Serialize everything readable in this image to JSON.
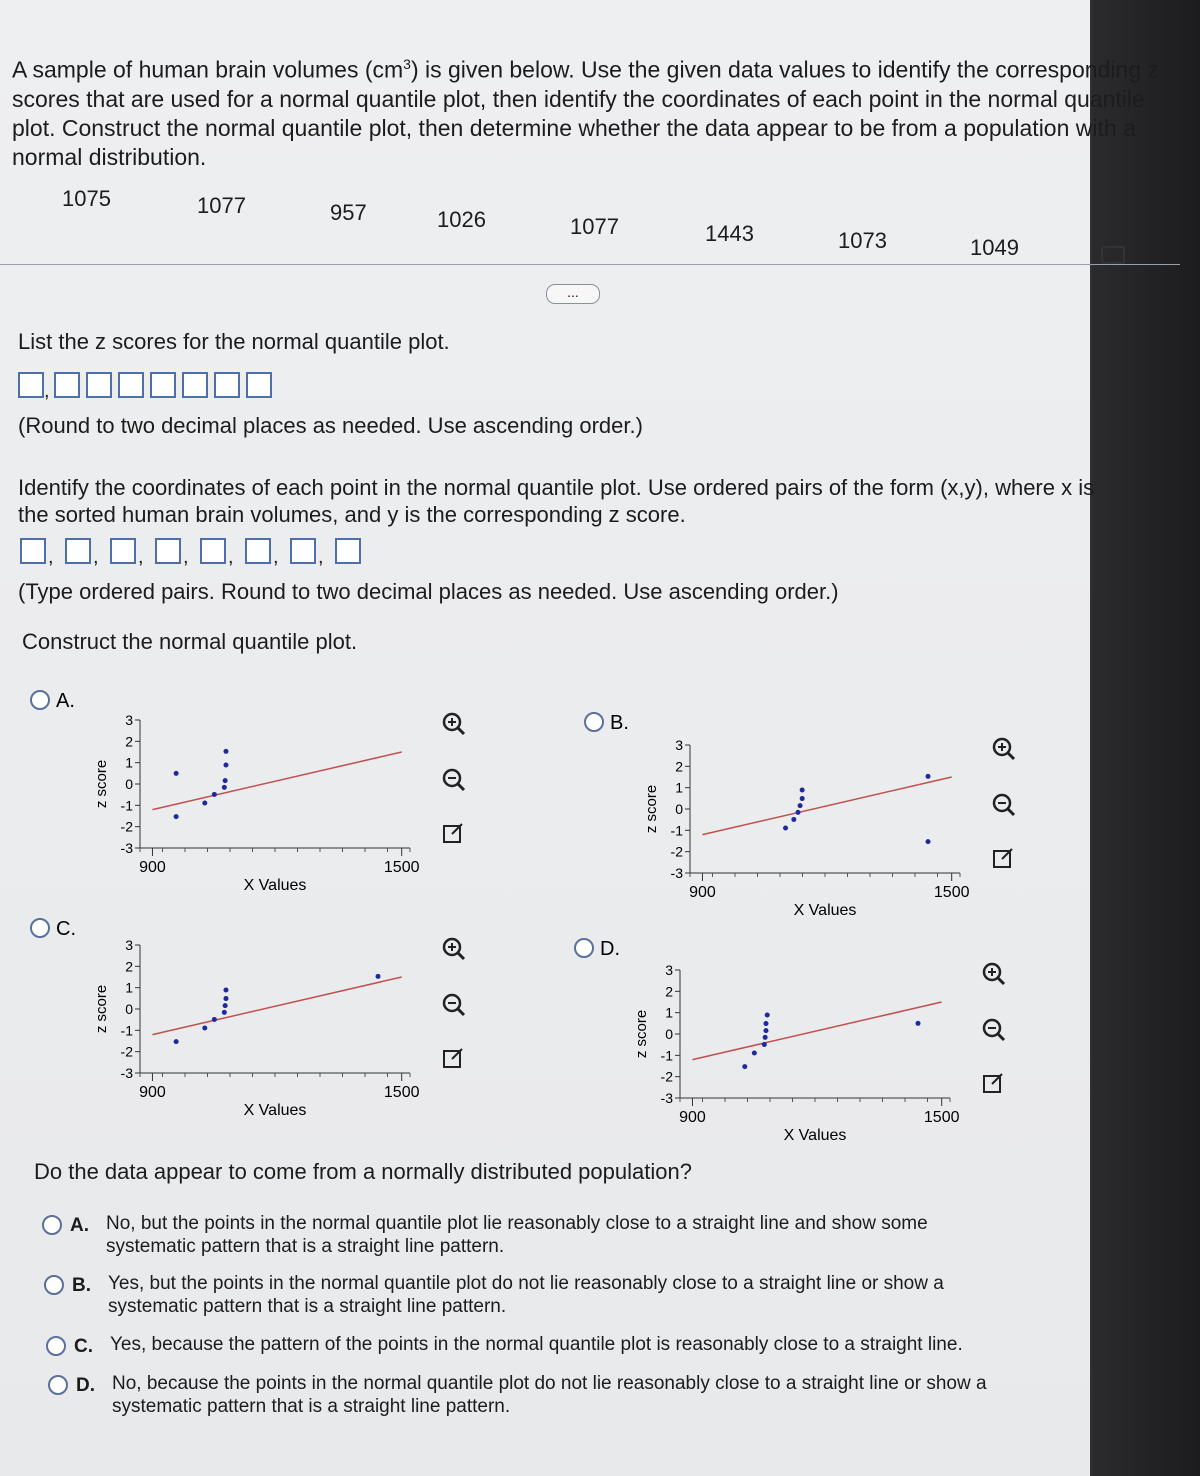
{
  "question": {
    "text_before": "A sample of human brain volumes (cm",
    "superscript": "3",
    "text_after": ") is given below. Use the given data values to identify the corresponding z scores that are used for a normal quantile plot, then identify the coordinates of each point in the normal quantile plot. Construct the normal quantile plot, then determine whether the data appear to be from a population with a normal distribution."
  },
  "data_values": [
    1075,
    1077,
    957,
    1026,
    1077,
    1443,
    1073,
    1049
  ],
  "more_button": "...",
  "separator": ",",
  "part1": {
    "prompt": "List the z scores for the normal quantile plot.",
    "instruction": "(Round to two decimal places as needed. Use ascending order.)"
  },
  "part2": {
    "prompt": "Identify the coordinates of each point in the normal quantile plot. Use ordered pairs of the form (x,y), where x is the sorted human brain volumes, and y is the corresponding z score.",
    "instruction": "(Type ordered pairs. Round to two decimal places as needed. Use ascending order.)"
  },
  "part3": {
    "prompt": "Construct the normal quantile plot.",
    "options": [
      {
        "letter": "A.",
        "y_label": "z score",
        "x_label": "X Values",
        "xlim": [
          870,
          1520
        ],
        "ylim": [
          -3,
          3
        ],
        "xticks": [
          900,
          1500
        ],
        "yticks": [
          3,
          2,
          1,
          0,
          -1,
          -2,
          -3
        ],
        "color": "#1c2a9c",
        "line_color": "#c0504d",
        "points": {
          "x": [
            957,
            957,
            1026,
            1049,
            1073,
            1075,
            1077,
            1077
          ],
          "y": [
            0.5,
            -1.53,
            -0.89,
            -0.49,
            -0.16,
            0.16,
            0.89,
            1.53
          ]
        },
        "fit_line": {
          "x": [
            900,
            1500
          ],
          "y": [
            -1.2,
            1.5
          ]
        }
      },
      {
        "letter": "B.",
        "y_label": "z score",
        "x_label": "X Values",
        "xlim": [
          870,
          1520
        ],
        "ylim": [
          -3,
          3
        ],
        "xticks": [
          900,
          1500
        ],
        "yticks": [
          3,
          2,
          1,
          0,
          -1,
          -2,
          -3
        ],
        "color": "#1c2a9c",
        "line_color": "#c0504d",
        "points": {
          "x": [
            1100,
            1120,
            1130,
            1135,
            1140,
            1140,
            1443,
            1443
          ],
          "y": [
            -0.89,
            -0.49,
            -0.16,
            0.16,
            0.49,
            0.89,
            -1.53,
            1.53
          ]
        },
        "fit_line": {
          "x": [
            900,
            1500
          ],
          "y": [
            -1.2,
            1.5
          ]
        }
      },
      {
        "letter": "C.",
        "y_label": "z score",
        "x_label": "X Values",
        "xlim": [
          870,
          1520
        ],
        "ylim": [
          -3,
          3
        ],
        "xticks": [
          900,
          1500
        ],
        "yticks": [
          3,
          2,
          1,
          0,
          -1,
          -2,
          -3
        ],
        "color": "#1c2a9c",
        "line_color": "#c0504d",
        "points": {
          "x": [
            957,
            1026,
            1049,
            1073,
            1075,
            1077,
            1077,
            1443
          ],
          "y": [
            -1.53,
            -0.89,
            -0.49,
            -0.16,
            0.16,
            0.49,
            0.89,
            1.53
          ]
        },
        "fit_line": {
          "x": [
            900,
            1500
          ],
          "y": [
            -1.2,
            1.5
          ]
        }
      },
      {
        "letter": "D.",
        "y_label": "z score",
        "x_label": "X Values",
        "xlim": [
          870,
          1520
        ],
        "ylim": [
          -3,
          3
        ],
        "xticks": [
          900,
          1500
        ],
        "yticks": [
          3,
          2,
          1,
          0,
          -1,
          -2,
          -3
        ],
        "color": "#1c2a9c",
        "line_color": "#c0504d",
        "points": {
          "x": [
            1026,
            1049,
            1073,
            1075,
            1077,
            1077,
            1080,
            1443
          ],
          "y": [
            -1.53,
            -0.89,
            -0.49,
            -0.16,
            0.16,
            0.49,
            0.89,
            0.5
          ]
        },
        "fit_line": {
          "x": [
            900,
            1500
          ],
          "y": [
            -1.2,
            1.5
          ]
        }
      }
    ]
  },
  "part4": {
    "prompt": "Do the data appear to come from a normally distributed population?",
    "options": [
      {
        "letter": "A.",
        "text": "No, but the points in the normal quantile plot lie reasonably close to a straight line and show some systematic pattern that is a straight line pattern."
      },
      {
        "letter": "B.",
        "text": "Yes, but the points in the normal quantile plot do not lie reasonably close to a straight line or show a systematic pattern that is a straight line pattern."
      },
      {
        "letter": "C.",
        "text": "Yes, because the pattern of the points in the normal quantile plot is reasonably close to a straight line."
      },
      {
        "letter": "D.",
        "text": "No, because the points in the normal quantile plot do not lie reasonably close to a straight line or show a systematic pattern that is a straight line pattern."
      }
    ]
  }
}
